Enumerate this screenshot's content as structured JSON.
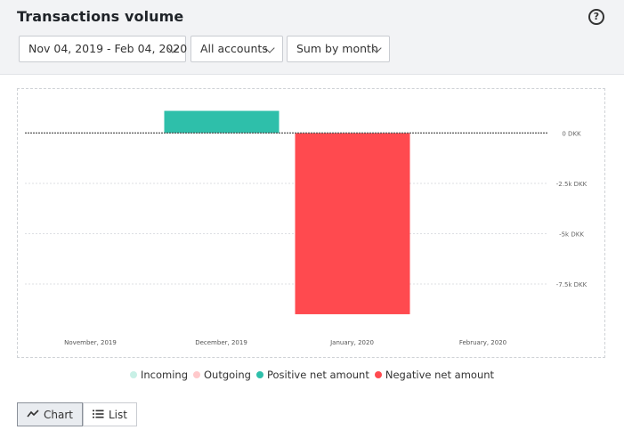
{
  "header": {
    "title": "Transactions volume",
    "help_icon": "?"
  },
  "filters": {
    "date_range": "Nov 04, 2019 - Feb 04, 2020",
    "accounts": "All accounts",
    "aggregation": "Sum by month"
  },
  "chart_data": {
    "type": "bar",
    "categories": [
      "November, 2019",
      "December, 2019",
      "January, 2020",
      "February, 2020"
    ],
    "series": [
      {
        "name": "Positive net amount",
        "color": "#2ebfaa",
        "values": [
          0,
          1100,
          0,
          0
        ]
      },
      {
        "name": "Negative net amount",
        "color": "#ff4a4f",
        "values": [
          0,
          0,
          -9000,
          0
        ]
      }
    ],
    "y_ticks": [
      0,
      -2500,
      -5000,
      -7500
    ],
    "y_tick_labels": [
      "0 DKK",
      "-2.5k DKK",
      "-5k DKK",
      "-7.5k DKK"
    ],
    "ylim": [
      -9400,
      1300
    ],
    "grid": true,
    "legend_placement": "bottom-center"
  },
  "legend": [
    {
      "label": "Incoming",
      "color": "#c8f0e6"
    },
    {
      "label": "Outgoing",
      "color": "#ffc9cb"
    },
    {
      "label": "Positive net amount",
      "color": "#2ebfaa"
    },
    {
      "label": "Negative net amount",
      "color": "#ff4a4f"
    }
  ],
  "view_toggle": {
    "chart_label": "Chart",
    "list_label": "List",
    "active": "Chart"
  }
}
